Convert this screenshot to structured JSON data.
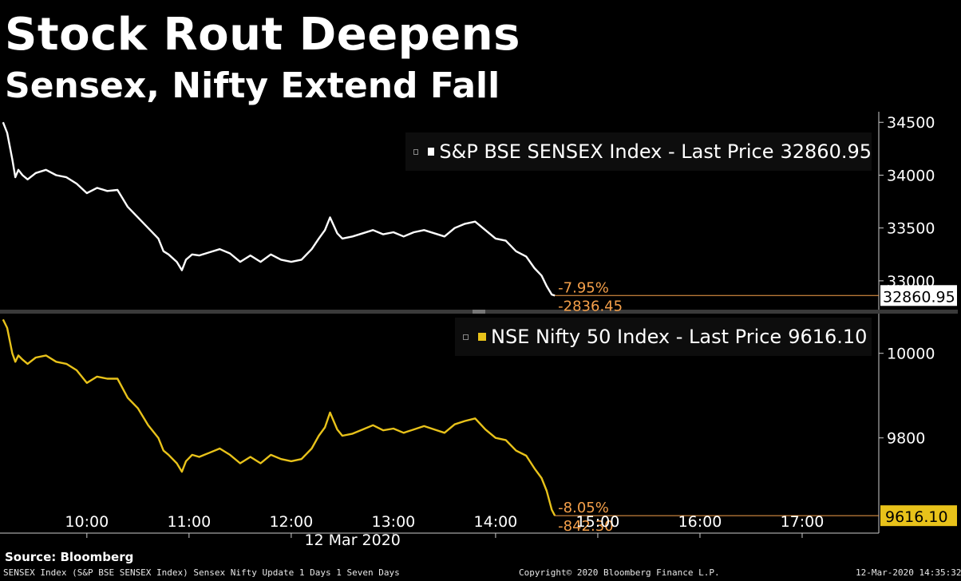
{
  "header": {
    "title": "Stock Rout Deepens",
    "subtitle": "Sensex, Nifty Extend Fall"
  },
  "source_label": "Source: Bloomberg",
  "footer": {
    "left": "SENSEX Index (S&P BSE SENSEX Index) Sensex Nifty Update 1 Days 1 Seven Days",
    "center": "Copyright© 2020 Bloomberg Finance L.P.",
    "right": "12-Mar-2020 14:35:32"
  },
  "colors": {
    "background": "#000000",
    "sensex_line": "#ffffff",
    "nifty_line": "#e8c21a",
    "annotation": "#f5a04a",
    "axis": "#cccccc"
  },
  "chart_data": [
    {
      "type": "line",
      "panel": "top",
      "series_name": "S&P BSE SENSEX Index - Last Price",
      "legend_label": "S&P BSE SENSEX Index - Last Price",
      "last_value": "32860.95",
      "change_pct": "-7.95%",
      "change_abs": "-2836.45",
      "y_ticks": [
        "34500",
        "34000",
        "33500",
        "33000"
      ],
      "ylim": [
        32750,
        34600
      ],
      "x": [
        9.18,
        9.22,
        9.27,
        9.3,
        9.33,
        9.37,
        9.42,
        9.5,
        9.6,
        9.7,
        9.8,
        9.9,
        10.0,
        10.1,
        10.2,
        10.3,
        10.4,
        10.5,
        10.6,
        10.7,
        10.75,
        10.8,
        10.88,
        10.93,
        10.97,
        11.03,
        11.1,
        11.2,
        11.3,
        11.4,
        11.5,
        11.6,
        11.7,
        11.8,
        11.9,
        12.0,
        12.1,
        12.2,
        12.27,
        12.33,
        12.38,
        12.45,
        12.5,
        12.6,
        12.7,
        12.8,
        12.9,
        13.0,
        13.1,
        13.2,
        13.3,
        13.4,
        13.5,
        13.6,
        13.7,
        13.8,
        13.9,
        14.0,
        14.1,
        14.2,
        14.3,
        14.38,
        14.45,
        14.5,
        14.55,
        14.58
      ],
      "y": [
        34500,
        34400,
        34150,
        33980,
        34050,
        34000,
        33960,
        34020,
        34050,
        34000,
        33980,
        33920,
        33830,
        33880,
        33850,
        33860,
        33700,
        33600,
        33500,
        33400,
        33280,
        33250,
        33180,
        33100,
        33200,
        33250,
        33240,
        33270,
        33300,
        33260,
        33180,
        33240,
        33180,
        33250,
        33200,
        33180,
        33200,
        33300,
        33400,
        33480,
        33600,
        33450,
        33400,
        33420,
        33450,
        33480,
        33440,
        33460,
        33420,
        33460,
        33480,
        33450,
        33420,
        33500,
        33540,
        33560,
        33480,
        33400,
        33380,
        33280,
        33230,
        33120,
        33050,
        32950,
        32870,
        32860.95
      ]
    },
    {
      "type": "line",
      "panel": "bottom",
      "series_name": "NSE Nifty 50 Index - Last Price",
      "legend_label": "NSE Nifty 50 Index - Last Price",
      "last_value": "9616.10",
      "change_pct": "-8.05%",
      "change_abs": "-842.30",
      "y_ticks": [
        "10000",
        "9800"
      ],
      "ylim": [
        9590,
        10090
      ],
      "x": [
        9.18,
        9.22,
        9.27,
        9.3,
        9.33,
        9.37,
        9.42,
        9.5,
        9.6,
        9.7,
        9.8,
        9.9,
        10.0,
        10.1,
        10.2,
        10.3,
        10.4,
        10.5,
        10.6,
        10.7,
        10.75,
        10.8,
        10.88,
        10.93,
        10.97,
        11.03,
        11.1,
        11.2,
        11.3,
        11.4,
        11.5,
        11.6,
        11.7,
        11.8,
        11.9,
        12.0,
        12.1,
        12.2,
        12.27,
        12.33,
        12.38,
        12.45,
        12.5,
        12.6,
        12.7,
        12.8,
        12.9,
        13.0,
        13.1,
        13.2,
        13.3,
        13.4,
        13.5,
        13.6,
        13.7,
        13.8,
        13.9,
        14.0,
        14.1,
        14.2,
        14.3,
        14.38,
        14.45,
        14.5,
        14.55,
        14.58
      ],
      "y": [
        10080,
        10060,
        10000,
        9980,
        9995,
        9985,
        9975,
        9990,
        9995,
        9980,
        9975,
        9960,
        9930,
        9945,
        9940,
        9940,
        9895,
        9870,
        9830,
        9800,
        9770,
        9760,
        9740,
        9720,
        9745,
        9760,
        9755,
        9765,
        9775,
        9760,
        9740,
        9755,
        9740,
        9760,
        9750,
        9745,
        9750,
        9775,
        9805,
        9825,
        9860,
        9820,
        9805,
        9810,
        9820,
        9830,
        9818,
        9822,
        9812,
        9820,
        9828,
        9820,
        9812,
        9832,
        9840,
        9846,
        9820,
        9800,
        9795,
        9770,
        9758,
        9728,
        9705,
        9675,
        9630,
        9616.1
      ]
    }
  ],
  "x_axis": {
    "ticks": [
      "10:00",
      "11:00",
      "12:00",
      "13:00",
      "14:00",
      "15:00",
      "16:00",
      "17:00"
    ],
    "tick_values": [
      10,
      11,
      12,
      13,
      14,
      15,
      16,
      17
    ],
    "date_label": "12 Mar 2020",
    "xlim": [
      9.15,
      17.75
    ]
  }
}
